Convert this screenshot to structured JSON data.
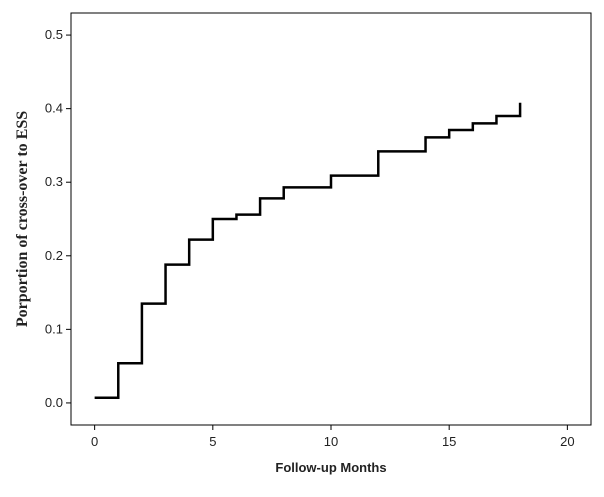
{
  "chart_data": {
    "type": "line",
    "step": true,
    "xlabel": "Follow-up Months",
    "ylabel": "Porportion of cross-over to ESS",
    "xlim": [
      -1,
      21
    ],
    "ylim": [
      -0.03,
      0.53
    ],
    "x_ticks": [
      0,
      5,
      10,
      15,
      20
    ],
    "y_ticks": [
      0.0,
      0.1,
      0.2,
      0.3,
      0.4,
      0.5
    ],
    "x_tick_labels": [
      "0",
      "5",
      "10",
      "15",
      "20"
    ],
    "y_tick_labels": [
      "0.0",
      "0.1",
      "0.2",
      "0.3",
      "0.4",
      "0.5"
    ],
    "grid": false,
    "line_color": "#000000",
    "series": [
      {
        "x": [
          0,
          1,
          2,
          3,
          4,
          5,
          6,
          7,
          8,
          10,
          12,
          14,
          15,
          16,
          17,
          18
        ],
        "y": [
          0.007,
          0.054,
          0.135,
          0.188,
          0.222,
          0.25,
          0.256,
          0.278,
          0.293,
          0.309,
          0.342,
          0.361,
          0.371,
          0.38,
          0.39,
          0.408
        ]
      }
    ]
  }
}
